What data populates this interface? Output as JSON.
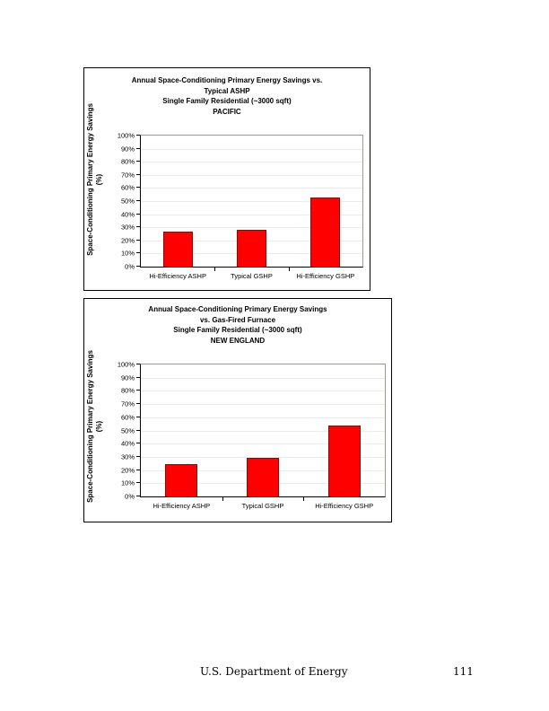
{
  "chart_data": [
    {
      "type": "bar",
      "title": "Annual Space-Conditioning Primary Energy Savings vs. Typical ASHP",
      "title_lines": [
        "Annual Space-Conditioning Primary Energy Savings vs.",
        "Typical ASHP",
        "Single Family Residential (~3000 sqft)",
        "PACIFIC"
      ],
      "subtitle": "Single Family Residential (~3000 sqft)",
      "region": "PACIFIC",
      "categories": [
        "Hi-Efficiency ASHP",
        "Typical GSHP",
        "Hi-Efficiency GSHP"
      ],
      "values": [
        26.5,
        28,
        52.5
      ],
      "ylabel": "Space-Conditioning Primary Energy Savings (%)",
      "ylabel_lines": [
        "Space-Conditioning Primary Energy Savings",
        "(%)"
      ],
      "xlabel": "",
      "ylim": [
        0,
        100
      ],
      "yticks": [
        "0%",
        "10%",
        "20%",
        "30%",
        "40%",
        "50%",
        "60%",
        "70%",
        "80%",
        "90%",
        "100%"
      ],
      "grid": true,
      "legend": "none",
      "bar_color": "#ff0000"
    },
    {
      "type": "bar",
      "title": "Annual Space-Conditioning Primary Energy Savings vs. Gas-Fired Furnace",
      "title_lines": [
        "Annual Space-Conditioning Primary Energy Savings",
        "vs. Gas-Fired Furnace",
        "Single Family Residential (~3000 sqft)",
        "NEW ENGLAND"
      ],
      "subtitle": "Single Family Residential (~3000 sqft)",
      "region": "NEW ENGLAND",
      "categories": [
        "Hi-Efficiency ASHP",
        "Typical GSHP",
        "Hi-Efficiency GSHP"
      ],
      "values": [
        24.5,
        29.5,
        53.5
      ],
      "ylabel": "Space-Conditioning Primary Energy Savings (%)",
      "ylabel_lines": [
        "Space-Conditioning Primary Energy Savings",
        "(%)"
      ],
      "xlabel": "",
      "ylim": [
        0,
        100
      ],
      "yticks": [
        "0%",
        "10%",
        "20%",
        "30%",
        "40%",
        "50%",
        "60%",
        "70%",
        "80%",
        "90%",
        "100%"
      ],
      "grid": true,
      "legend": "none",
      "bar_color": "#ff0000"
    }
  ],
  "footer": {
    "organization": "U.S. Department of Energy",
    "page_number": "111"
  }
}
